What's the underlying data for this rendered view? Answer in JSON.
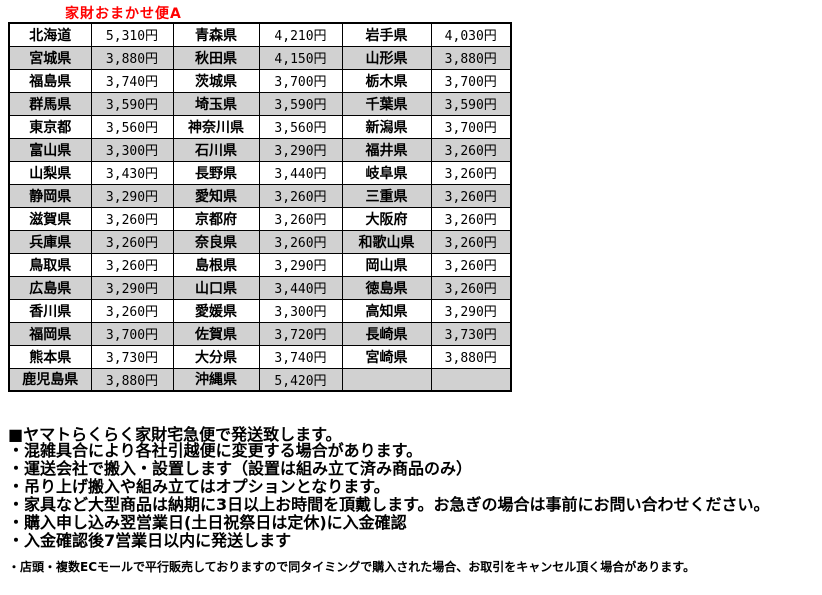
{
  "title": "家財おまかせ便A",
  "colors": {
    "title_red": "#ff0000",
    "alt_row_gray": "#d1d1d1",
    "border_black": "#000000"
  },
  "table": {
    "rows": [
      [
        {
          "name": "北海道",
          "price": "5,310円"
        },
        {
          "name": "青森県",
          "price": "4,210円"
        },
        {
          "name": "岩手県",
          "price": "4,030円"
        }
      ],
      [
        {
          "name": "宮城県",
          "price": "3,880円"
        },
        {
          "name": "秋田県",
          "price": "4,150円"
        },
        {
          "name": "山形県",
          "price": "3,880円"
        }
      ],
      [
        {
          "name": "福島県",
          "price": "3,740円"
        },
        {
          "name": "茨城県",
          "price": "3,700円"
        },
        {
          "name": "栃木県",
          "price": "3,700円"
        }
      ],
      [
        {
          "name": "群馬県",
          "price": "3,590円"
        },
        {
          "name": "埼玉県",
          "price": "3,590円"
        },
        {
          "name": "千葉県",
          "price": "3,590円"
        }
      ],
      [
        {
          "name": "東京都",
          "price": "3,560円"
        },
        {
          "name": "神奈川県",
          "price": "3,560円"
        },
        {
          "name": "新潟県",
          "price": "3,700円"
        }
      ],
      [
        {
          "name": "富山県",
          "price": "3,300円"
        },
        {
          "name": "石川県",
          "price": "3,290円"
        },
        {
          "name": "福井県",
          "price": "3,260円"
        }
      ],
      [
        {
          "name": "山梨県",
          "price": "3,430円"
        },
        {
          "name": "長野県",
          "price": "3,440円"
        },
        {
          "name": "岐阜県",
          "price": "3,260円"
        }
      ],
      [
        {
          "name": "静岡県",
          "price": "3,290円"
        },
        {
          "name": "愛知県",
          "price": "3,260円"
        },
        {
          "name": "三重県",
          "price": "3,260円"
        }
      ],
      [
        {
          "name": "滋賀県",
          "price": "3,260円"
        },
        {
          "name": "京都府",
          "price": "3,260円"
        },
        {
          "name": "大阪府",
          "price": "3,260円"
        }
      ],
      [
        {
          "name": "兵庫県",
          "price": "3,260円"
        },
        {
          "name": "奈良県",
          "price": "3,260円"
        },
        {
          "name": "和歌山県",
          "price": "3,260円"
        }
      ],
      [
        {
          "name": "鳥取県",
          "price": "3,260円"
        },
        {
          "name": "島根県",
          "price": "3,290円"
        },
        {
          "name": "岡山県",
          "price": "3,260円"
        }
      ],
      [
        {
          "name": "広島県",
          "price": "3,290円"
        },
        {
          "name": "山口県",
          "price": "3,440円"
        },
        {
          "name": "徳島県",
          "price": "3,260円"
        }
      ],
      [
        {
          "name": "香川県",
          "price": "3,260円"
        },
        {
          "name": "愛媛県",
          "price": "3,300円"
        },
        {
          "name": "高知県",
          "price": "3,290円"
        }
      ],
      [
        {
          "name": "福岡県",
          "price": "3,700円"
        },
        {
          "name": "佐賀県",
          "price": "3,720円"
        },
        {
          "name": "長崎県",
          "price": "3,730円"
        }
      ],
      [
        {
          "name": "熊本県",
          "price": "3,730円"
        },
        {
          "name": "大分県",
          "price": "3,740円"
        },
        {
          "name": "宮崎県",
          "price": "3,880円"
        }
      ],
      [
        {
          "name": "鹿児島県",
          "price": "3,880円"
        },
        {
          "name": "沖縄県",
          "price": "5,420円"
        },
        {
          "name": "",
          "price": ""
        }
      ]
    ]
  },
  "notes": {
    "heading": "■ヤマトらくらく家財宅急便で発送致します。",
    "bullets": [
      "・混雑具合により各社引越便に変更する場合があります。",
      "・運送会社で搬入・設置します（設置は組み立て済み商品のみ）",
      "・吊り上げ搬入や組み立てはオプションとなります。",
      "・家具など大型商品は納期に3日以上お時間を頂戴します。お急ぎの場合は事前にお問い合わせください。",
      "・購入申し込み翌営業日(土日祝祭日は定休)に入金確認",
      "・入金確認後7営業日以内に発送します"
    ],
    "footnote": "・店頭・複数ECモールで平行販売しておりますので同タイミングで購入された場合、お取引をキャンセル頂く場合があります。"
  }
}
